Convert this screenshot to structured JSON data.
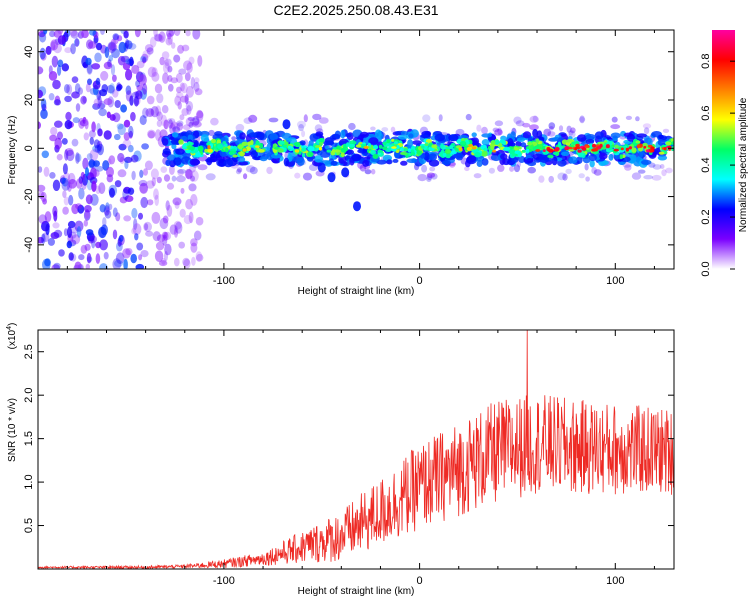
{
  "figure": {
    "title": "C2E2.2025.250.08.43.E31"
  },
  "chart_data": [
    {
      "type": "heatmap",
      "name": "spectrogram",
      "xlabel": "Height of straight line (km)",
      "ylabel": "Frequency (Hz)",
      "xlim": [
        -195,
        130
      ],
      "ylim": [
        -50,
        49
      ],
      "x_ticks": [
        -100,
        0,
        100
      ],
      "x_tick_labels": [
        "-100",
        "0",
        "100"
      ],
      "y_ticks": [
        -40,
        -20,
        0,
        20,
        40
      ],
      "y_tick_labels": [
        "-40",
        "-20",
        "0",
        "20",
        "40"
      ],
      "colorbar": {
        "label": "Normalized spectral amplitude",
        "range": [
          0,
          0.92
        ],
        "ticks": [
          0.0,
          0.2,
          0.4,
          0.6,
          0.8
        ],
        "tick_labels": [
          "0.0",
          "0.2",
          "0.4",
          "0.6",
          "0.8"
        ],
        "colors": [
          "#ffffff",
          "#7a00ff",
          "#0000ff",
          "#00ffff",
          "#00ff66",
          "#ffff00",
          "#ff8000",
          "#ff0000",
          "#ff00a0"
        ]
      },
      "features": {
        "noise_region_x": [
          -195,
          -120
        ],
        "signal_band_center_hz": 0,
        "signal_band_halfwidth_hz": 4,
        "signal_start_x": -130,
        "feature_blobs": [
          {
            "x": -68,
            "y": 10
          },
          {
            "x": -50,
            "y": -8
          },
          {
            "x": -45,
            "y": -12
          },
          {
            "x": -38,
            "y": -10
          },
          {
            "x": -32,
            "y": -24
          }
        ],
        "peak_region_x": [
          60,
          130
        ]
      }
    },
    {
      "type": "line",
      "name": "snr",
      "xlabel": "Height of straight line (km)",
      "ylabel": "SNR (10 * v/v)",
      "y_scale_label": "(x10^4)",
      "y_scale_base": "x10",
      "y_scale_exp": "4",
      "xlim": [
        -195,
        130
      ],
      "ylim": [
        0,
        2.75
      ],
      "x_ticks": [
        -100,
        0,
        100
      ],
      "x_tick_labels": [
        "-100",
        "0",
        "100"
      ],
      "y_ticks": [
        0.5,
        1.0,
        1.5,
        2.0,
        2.5
      ],
      "y_tick_labels": [
        "0.5",
        "1.0",
        "1.5",
        "2.0",
        "2.5"
      ],
      "line_color": "#ee2a24",
      "trend": {
        "x": [
          -195,
          -140,
          -120,
          -100,
          -80,
          -60,
          -40,
          -20,
          0,
          20,
          40,
          60,
          80,
          100,
          130
        ],
        "y": [
          0.02,
          0.02,
          0.03,
          0.06,
          0.12,
          0.25,
          0.38,
          0.65,
          0.95,
          1.15,
          1.35,
          1.45,
          1.4,
          1.38,
          1.35
        ]
      },
      "noise_amplitude": [
        {
          "x": -195,
          "a": 0.01
        },
        {
          "x": -120,
          "a": 0.02
        },
        {
          "x": -80,
          "a": 0.08
        },
        {
          "x": -40,
          "a": 0.3
        },
        {
          "x": 0,
          "a": 0.5
        },
        {
          "x": 40,
          "a": 0.6
        },
        {
          "x": 130,
          "a": 0.5
        }
      ],
      "peak": {
        "x": 55,
        "y": 2.75
      }
    }
  ]
}
